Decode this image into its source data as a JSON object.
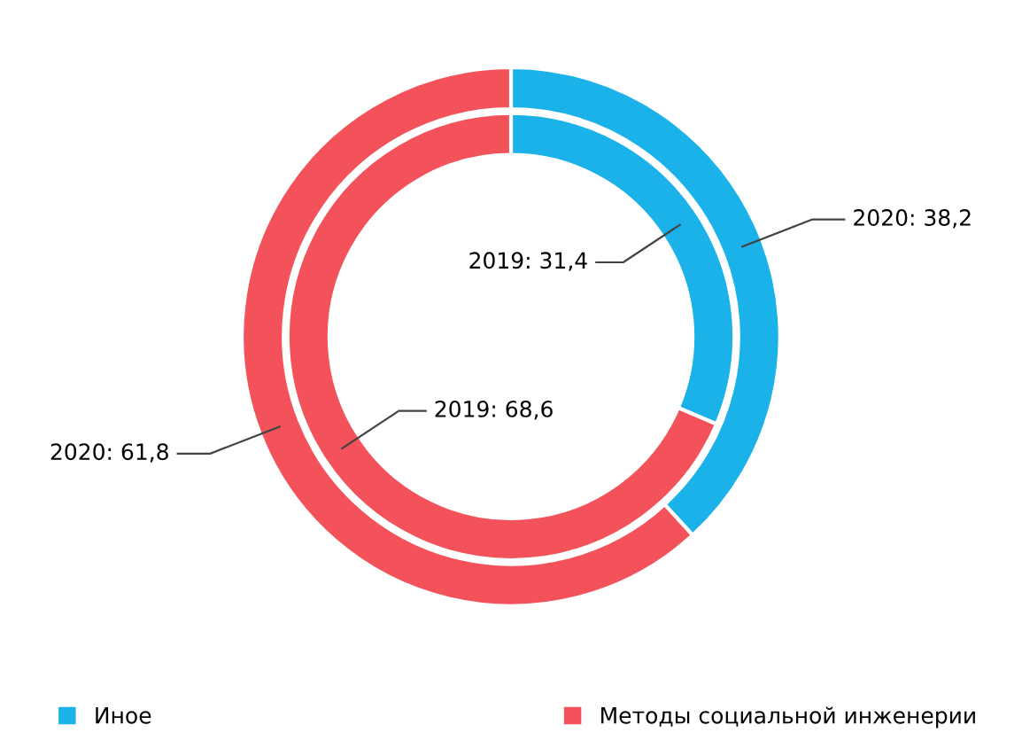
{
  "chart_data": {
    "type": "donut",
    "categories": [
      "Иное",
      "Методы социальной инженерии"
    ],
    "colors": [
      "#1ab2e8",
      "#f4525a"
    ],
    "series": [
      {
        "values": [
          38.2,
          61.8
        ],
        "value_labels": [
          "2020: 38,2",
          "2020: 61,8"
        ]
      },
      {
        "values": [
          31.4,
          68.6
        ],
        "value_labels": [
          "2019: 31,4",
          "2019: 68,6"
        ]
      }
    ],
    "legend": "bottom"
  }
}
